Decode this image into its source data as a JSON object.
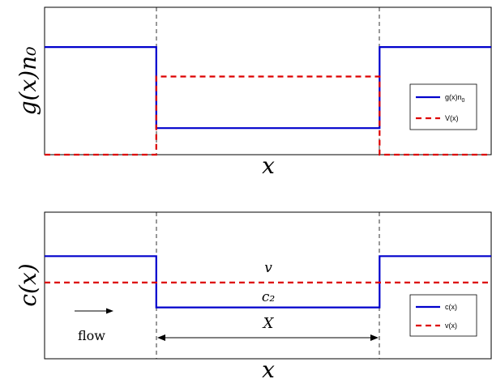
{
  "colors": {
    "blue": "#0000cc",
    "red": "#dd0000",
    "frame": "#000000",
    "dashed_guides": "#000000"
  },
  "chart_data": [
    {
      "type": "line",
      "title": "",
      "xlabel": "x",
      "ylabel": "g(x)n₀",
      "xlim": [
        0,
        1
      ],
      "ylim": [
        0,
        1
      ],
      "x_ticks": [],
      "y_ticks": [],
      "grid": false,
      "legend_position": "right",
      "guides_x": [
        0.25,
        0.75
      ],
      "series": [
        {
          "name": "g(x)n₀",
          "color": "#0000cc",
          "dash": "solid",
          "x": [
            0,
            0.25,
            0.25,
            0.75,
            0.75,
            1
          ],
          "y": [
            0.73,
            0.73,
            0.18,
            0.18,
            0.73,
            0.73
          ]
        },
        {
          "name": "V(x)",
          "color": "#dd0000",
          "dash": "dashed",
          "x": [
            0,
            0.25,
            0.25,
            0.75,
            0.75,
            1
          ],
          "y": [
            0.0,
            0.0,
            0.53,
            0.53,
            0.0,
            0.0
          ]
        }
      ],
      "legend_labels": {
        "blue_main": "g(x)n",
        "blue_sub": "0",
        "red": "V(x)"
      },
      "annotations": []
    },
    {
      "type": "line",
      "title": "",
      "xlabel": "x",
      "ylabel": "c(x)",
      "xlim": [
        0,
        1
      ],
      "ylim": [
        0,
        1
      ],
      "x_ticks": [],
      "y_ticks": [],
      "grid": false,
      "legend_position": "lower-right",
      "guides_x": [
        0.25,
        0.75
      ],
      "series": [
        {
          "name": "c(x)",
          "color": "#0000cc",
          "dash": "solid",
          "x": [
            0,
            0.25,
            0.25,
            0.75,
            0.75,
            1
          ],
          "y": [
            0.7,
            0.7,
            0.35,
            0.35,
            0.7,
            0.7
          ]
        },
        {
          "name": "v(x)",
          "color": "#dd0000",
          "dash": "dashed",
          "x": [
            0,
            1
          ],
          "y": [
            0.52,
            0.52
          ]
        }
      ],
      "legend_labels": {
        "blue": "c(x)",
        "red": "v(x)"
      },
      "annotations": [
        {
          "id": "v",
          "text": "v",
          "x": 0.5,
          "y": 0.62
        },
        {
          "id": "c2",
          "text": "c₂",
          "x": 0.5,
          "y": 0.42
        },
        {
          "id": "flow",
          "text": "flow",
          "x": 0.1,
          "y": 0.15
        },
        {
          "id": "X",
          "text": "X",
          "x": 0.5,
          "y": 0.22
        }
      ]
    }
  ]
}
